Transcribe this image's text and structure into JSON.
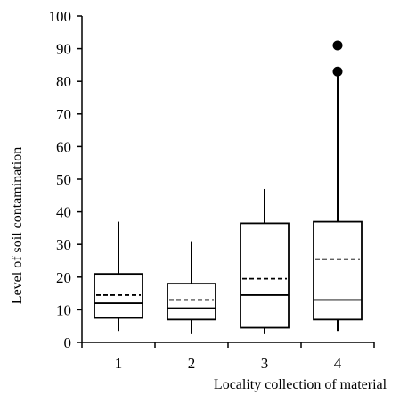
{
  "chart_data": {
    "type": "box",
    "title": "",
    "xlabel": "Locality collection of material",
    "ylabel": "Level of soil contamination",
    "categories": [
      "1",
      "2",
      "3",
      "4"
    ],
    "ylim": [
      0,
      100
    ],
    "yticks": [
      0,
      10,
      20,
      30,
      40,
      50,
      60,
      70,
      80,
      90,
      100
    ],
    "grid": false,
    "boxes": [
      {
        "category": "1",
        "whisker_low": 3.5,
        "q1": 7.5,
        "median": 12,
        "mean": 14.5,
        "q3": 21,
        "whisker_high": 37,
        "outliers": []
      },
      {
        "category": "2",
        "whisker_low": 2.5,
        "q1": 7,
        "median": 10.5,
        "mean": 13,
        "q3": 18,
        "whisker_high": 31,
        "outliers": []
      },
      {
        "category": "3",
        "whisker_low": 2.5,
        "q1": 4.5,
        "median": 14.5,
        "mean": 19.5,
        "q3": 36.5,
        "whisker_high": 47,
        "outliers": []
      },
      {
        "category": "4",
        "whisker_low": 3.5,
        "q1": 7,
        "median": 13,
        "mean": 25.5,
        "q3": 37,
        "whisker_high": 83,
        "outliers": [
          83,
          91
        ]
      }
    ]
  }
}
